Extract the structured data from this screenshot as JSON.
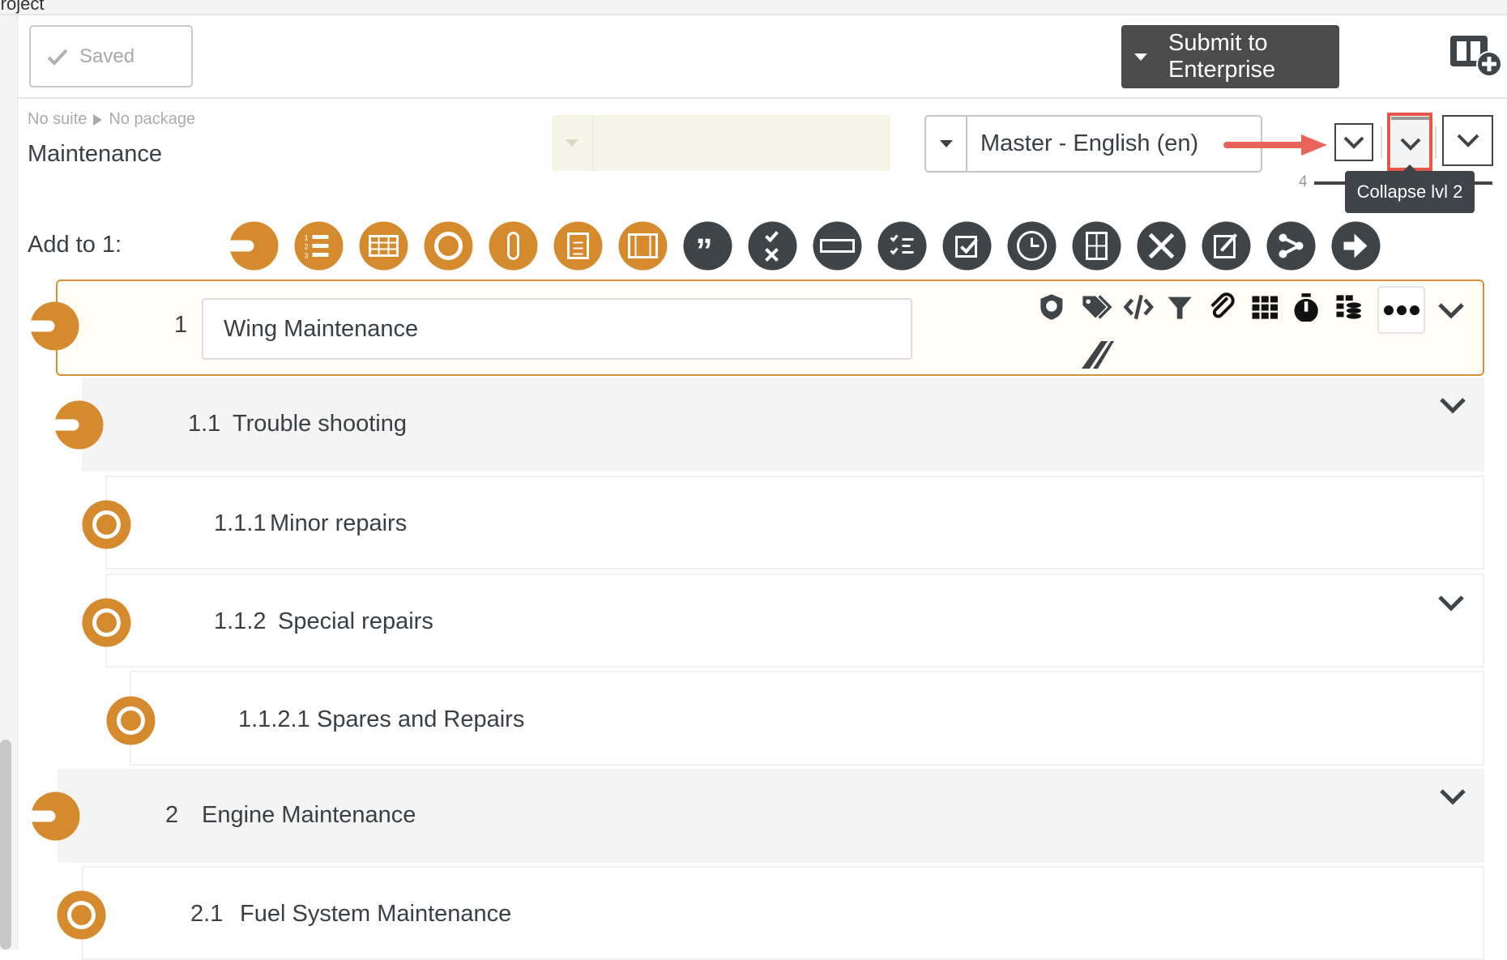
{
  "breadcrumb_top": "Project",
  "header": {
    "saved_label": "Saved",
    "submit_label": "Submit to Enterprise"
  },
  "doc": {
    "suite": "No suite",
    "package": "No package",
    "title": "Maintenance"
  },
  "language": {
    "selected": "Master - English (en)"
  },
  "levels": {
    "max_level": "4",
    "tooltip": "Collapse lvl 2"
  },
  "add_to": {
    "label": "Add to 1:",
    "icons": [
      "section-icon",
      "numbered-list-icon",
      "table-icon",
      "step-icon",
      "sequence-icon",
      "checklist-clipboard-icon",
      "media-icon",
      "quote-icon",
      "pass-fail-icon",
      "input-field-icon",
      "checklist-icon",
      "checkbox-icon",
      "timer-icon",
      "calculator-icon",
      "tools-icon",
      "signoff-icon",
      "branch-icon",
      "go-to-icon"
    ]
  },
  "colors": {
    "orange": "#d58a2e",
    "dark": "#3f4448",
    "highlight": "#e8564a"
  },
  "tree": [
    {
      "number": "1",
      "title": "Wing Maintenance",
      "type": "section",
      "selected": true
    },
    {
      "number": "1.1",
      "title": "Trouble shooting",
      "type": "section"
    },
    {
      "number": "1.1.1",
      "title": "Minor repairs",
      "type": "step"
    },
    {
      "number": "1.1.2",
      "title": "Special repairs",
      "type": "step"
    },
    {
      "number": "1.1.2.1",
      "title": "Spares and Repairs",
      "type": "step"
    },
    {
      "number": "2",
      "title": "Engine Maintenance",
      "type": "section"
    },
    {
      "number": "2.1",
      "title": "Fuel System Maintenance",
      "type": "step"
    }
  ],
  "row_tools": [
    "shield-icon",
    "tags-icon",
    "code-icon",
    "filter-icon",
    "paperclip-icon",
    "grid-icon",
    "stopwatch-icon",
    "database-icon"
  ]
}
